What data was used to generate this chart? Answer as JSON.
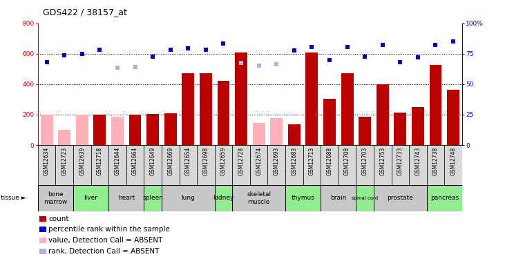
{
  "title": "GDS422 / 38157_at",
  "samples": [
    "GSM12634",
    "GSM12723",
    "GSM12639",
    "GSM12718",
    "GSM12644",
    "GSM12664",
    "GSM12649",
    "GSM12669",
    "GSM12654",
    "GSM12698",
    "GSM12659",
    "GSM12728",
    "GSM12674",
    "GSM12693",
    "GSM12683",
    "GSM12713",
    "GSM12688",
    "GSM12708",
    "GSM12703",
    "GSM12753",
    "GSM12733",
    "GSM12743",
    "GSM12738",
    "GSM12748"
  ],
  "count_values": [
    200,
    100,
    200,
    200,
    185,
    200,
    205,
    210,
    470,
    470,
    420,
    610,
    145,
    175,
    135,
    610,
    305,
    470,
    185,
    400,
    215,
    250,
    525,
    365
  ],
  "count_absent": [
    true,
    true,
    true,
    false,
    true,
    false,
    false,
    false,
    false,
    false,
    false,
    false,
    true,
    true,
    false,
    false,
    false,
    false,
    false,
    false,
    false,
    false,
    false,
    false
  ],
  "rank_values": [
    545,
    590,
    600,
    625,
    510,
    515,
    580,
    625,
    635,
    625,
    665,
    540,
    520,
    530,
    620,
    645,
    560,
    645,
    580,
    660,
    545,
    575,
    660,
    680
  ],
  "rank_absent": [
    false,
    false,
    false,
    false,
    true,
    true,
    false,
    false,
    false,
    false,
    false,
    true,
    true,
    true,
    false,
    false,
    false,
    false,
    false,
    false,
    false,
    false,
    false,
    false
  ],
  "tissues": [
    {
      "name": "bone\nmarrow",
      "cols": [
        0,
        1
      ],
      "color": "#c8c8c8"
    },
    {
      "name": "liver",
      "cols": [
        2,
        3
      ],
      "color": "#90ee90"
    },
    {
      "name": "heart",
      "cols": [
        4,
        5
      ],
      "color": "#c8c8c8"
    },
    {
      "name": "spleen",
      "cols": [
        6
      ],
      "color": "#90ee90"
    },
    {
      "name": "lung",
      "cols": [
        7,
        8,
        9
      ],
      "color": "#c8c8c8"
    },
    {
      "name": "kidney",
      "cols": [
        10
      ],
      "color": "#90ee90"
    },
    {
      "name": "skeletal\nmuscle",
      "cols": [
        11,
        12,
        13
      ],
      "color": "#c8c8c8"
    },
    {
      "name": "thymus",
      "cols": [
        14,
        15
      ],
      "color": "#90ee90"
    },
    {
      "name": "brain",
      "cols": [
        16,
        17
      ],
      "color": "#c8c8c8"
    },
    {
      "name": "spinal cord",
      "cols": [
        18
      ],
      "color": "#90ee90"
    },
    {
      "name": "prostate",
      "cols": [
        19,
        20,
        21
      ],
      "color": "#c8c8c8"
    },
    {
      "name": "pancreas",
      "cols": [
        22,
        23
      ],
      "color": "#90ee90"
    }
  ],
  "ylim_left": [
    0,
    800
  ],
  "ylim_right": [
    0,
    100
  ],
  "yticks_left": [
    0,
    200,
    400,
    600,
    800
  ],
  "yticks_right": [
    0,
    25,
    50,
    75,
    100
  ],
  "bar_color_present": "#bb0000",
  "bar_color_absent": "#ffb0b8",
  "dot_color_present": "#0000cc",
  "dot_color_absent": "#b0b0dd",
  "title_fontsize": 9,
  "tick_fontsize": 6.5,
  "sample_fontsize": 5.5,
  "tissue_fontsize": 6.5,
  "legend_fontsize": 7.5
}
